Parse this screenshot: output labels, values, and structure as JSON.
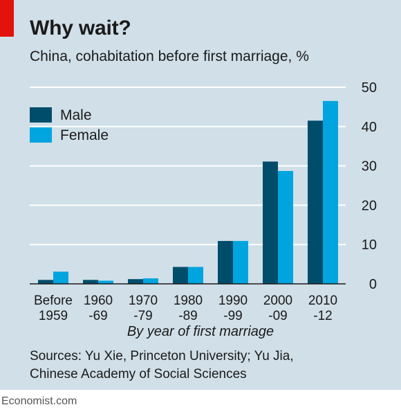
{
  "header": {
    "title": "Why wait?",
    "subtitle": "China, cohabitation before first marriage, %"
  },
  "legend": {
    "male_label": "Male",
    "female_label": "Female"
  },
  "colors": {
    "male": "#004d6b",
    "female": "#00a5df",
    "background": "#d0dfe8",
    "accent": "#e3120b"
  },
  "chart_data": {
    "type": "bar",
    "categories": [
      [
        "Before",
        "1959"
      ],
      [
        "1960",
        "-69"
      ],
      [
        "1970",
        "-79"
      ],
      [
        "1980",
        "-89"
      ],
      [
        "1990",
        "-99"
      ],
      [
        "2000",
        "-09"
      ],
      [
        "2010",
        "-12"
      ]
    ],
    "series": [
      {
        "name": "Male",
        "values": [
          1,
          1,
          1.2,
          4.3,
          10.9,
          31.1,
          41.5
        ]
      },
      {
        "name": "Female",
        "values": [
          3.1,
          0.8,
          1.4,
          4.3,
          10.9,
          28.7,
          46.5
        ]
      }
    ],
    "xlabel": "By year of first marriage",
    "ylabel": "",
    "ylim": [
      0,
      50
    ],
    "yticks": [
      0,
      10,
      20,
      30,
      40,
      50
    ],
    "y_axis_side": "right",
    "grid": true,
    "legend_position": "top-left"
  },
  "sources": {
    "line1": "Sources: Yu Xie, Princeton University; Yu Jia,",
    "line2": "Chinese Academy of Social Sciences"
  },
  "footer": {
    "brand": "Economist.com"
  }
}
